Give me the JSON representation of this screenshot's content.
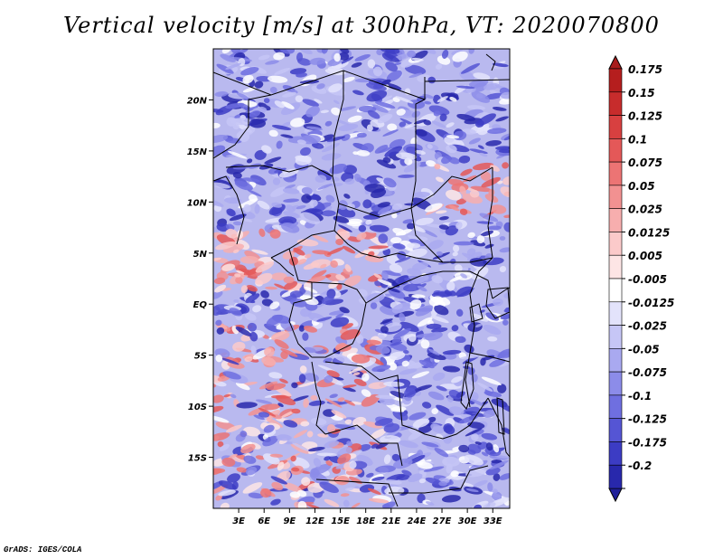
{
  "title": "Vertical velocity [m/s] at 300hPa, VT: 2020070800",
  "credit": "GrADS: IGES/COLA",
  "map": {
    "lon_range": [
      0,
      35
    ],
    "lat_range": [
      -20,
      25
    ],
    "lat_ticks": [
      {
        "value": 20,
        "label": "20N"
      },
      {
        "value": 15,
        "label": "15N"
      },
      {
        "value": 10,
        "label": "10N"
      },
      {
        "value": 5,
        "label": "5N"
      },
      {
        "value": 0,
        "label": "EQ"
      },
      {
        "value": -5,
        "label": "5S"
      },
      {
        "value": -10,
        "label": "10S"
      },
      {
        "value": -15,
        "label": "15S"
      }
    ],
    "lon_ticks": [
      {
        "value": 3,
        "label": "3E"
      },
      {
        "value": 6,
        "label": "6E"
      },
      {
        "value": 9,
        "label": "9E"
      },
      {
        "value": 12,
        "label": "12E"
      },
      {
        "value": 15,
        "label": "15E"
      },
      {
        "value": 18,
        "label": "18E"
      },
      {
        "value": 21,
        "label": "21E"
      },
      {
        "value": 24,
        "label": "24E"
      },
      {
        "value": 27,
        "label": "27E"
      },
      {
        "value": 30,
        "label": "30E"
      },
      {
        "value": 33,
        "label": "33E"
      }
    ]
  },
  "colorbar": {
    "entries": [
      {
        "label": "0.175",
        "color": "#b51e1e"
      },
      {
        "label": "0.15",
        "color": "#c72c2c"
      },
      {
        "label": "0.125",
        "color": "#d84040"
      },
      {
        "label": "0.1",
        "color": "#e45858"
      },
      {
        "label": "0.075",
        "color": "#ec7474"
      },
      {
        "label": "0.05",
        "color": "#f29191"
      },
      {
        "label": "0.025",
        "color": "#f7aeae"
      },
      {
        "label": "0.0125",
        "color": "#fbcaca"
      },
      {
        "label": "0.005",
        "color": "#fde5e5"
      },
      {
        "label": "-0.005",
        "color": "#ffffff"
      },
      {
        "label": "-0.0125",
        "color": "#e3e3fb"
      },
      {
        "label": "-0.025",
        "color": "#c6c6f6"
      },
      {
        "label": "-0.05",
        "color": "#a9a9f0"
      },
      {
        "label": "-0.075",
        "color": "#8c8ce9"
      },
      {
        "label": "-0.1",
        "color": "#6f6fe0"
      },
      {
        "label": "-0.125",
        "color": "#5555d4"
      },
      {
        "label": "-0.175",
        "color": "#3c3cc4"
      },
      {
        "label": "-0.2",
        "color": "#2828ac"
      }
    ],
    "top_color": "#a81c1c",
    "bottom_color": "#20209a"
  },
  "colors": {
    "background": "#ffffff",
    "border_lines": "#000000",
    "field_base": "#b9b9ef"
  }
}
